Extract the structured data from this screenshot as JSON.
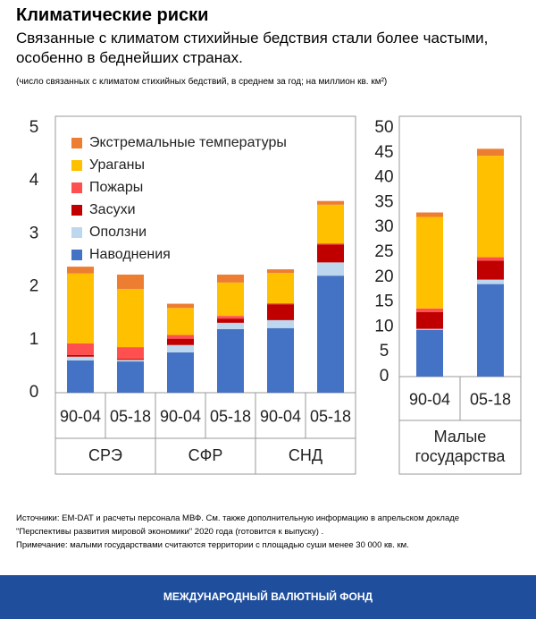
{
  "header": {
    "title": "Климатические риски",
    "subtitle": "Связанные с климатом стихийные бедствия стали более частыми, особенно в беднейших странах.",
    "unit_note": "(число связанных с климатом стихийных бедствий,  в среднем за год; на миллион кв. км²)"
  },
  "chart_data": [
    {
      "type": "bar",
      "stacked": true,
      "legend": "upper left",
      "categories": [
        "90-04",
        "05-18",
        "90-04",
        "05-18",
        "90-04",
        "05-18"
      ],
      "groups": [
        "СРЭ",
        "СФР",
        "СНД"
      ],
      "ylim": [
        0,
        5
      ],
      "yticks": [
        0,
        1,
        2,
        3,
        4,
        5
      ],
      "series": [
        {
          "name": "Наводнения",
          "color": "#4472c4",
          "values": [
            0.61,
            0.59,
            0.76,
            1.2,
            1.22,
            2.21
          ]
        },
        {
          "name": "Оползни",
          "color": "#bdd7ee",
          "values": [
            0.07,
            0.03,
            0.14,
            0.12,
            0.15,
            0.25
          ]
        },
        {
          "name": "Засухи",
          "color": "#c00000",
          "values": [
            0.03,
            0.02,
            0.12,
            0.08,
            0.3,
            0.34
          ]
        },
        {
          "name": "Пожары",
          "color": "#ff5050",
          "values": [
            0.22,
            0.22,
            0.07,
            0.05,
            0.02,
            0.02
          ]
        },
        {
          "name": "Ураганы",
          "color": "#ffc000",
          "values": [
            1.32,
            1.1,
            0.51,
            0.63,
            0.57,
            0.73
          ]
        },
        {
          "name": "Экстремальные температуры",
          "color": "#ed7d31",
          "values": [
            0.13,
            0.27,
            0.08,
            0.15,
            0.07,
            0.07
          ]
        }
      ]
    },
    {
      "type": "bar",
      "stacked": true,
      "categories": [
        "90-04",
        "05-18"
      ],
      "groups": [
        "Малые государства"
      ],
      "ylim": [
        0,
        50
      ],
      "yticks": [
        0,
        5,
        10,
        15,
        20,
        25,
        30,
        35,
        40,
        45,
        50
      ],
      "series": [
        {
          "name": "Наводнения",
          "color": "#4472c4",
          "values": [
            9.4,
            18.6
          ]
        },
        {
          "name": "Оползни",
          "color": "#bdd7ee",
          "values": [
            0.2,
            0.9
          ]
        },
        {
          "name": "Засухи",
          "color": "#c00000",
          "values": [
            3.4,
            3.8
          ]
        },
        {
          "name": "Пожары",
          "color": "#ff5050",
          "values": [
            0.7,
            0.7
          ]
        },
        {
          "name": "Ураганы",
          "color": "#ffc000",
          "values": [
            18.4,
            20.4
          ]
        },
        {
          "name": "Экстремальные температуры",
          "color": "#ed7d31",
          "values": [
            0.9,
            1.4
          ]
        }
      ]
    }
  ],
  "footer": {
    "source": [
      "Источники: EM-DAT и расчеты персонала МВФ.  См. также дополнительную информацию в апрельском докладе",
      "\"Перспективы развития мировой экономики\"  2020 года (готовится к выпуску) ."
    ],
    "note": "Примечание:  малыми государствами считаются территории с площадью суши менее 30 000 кв. км.",
    "brand": "МЕЖДУНАРОДНЫЙ ВАЛЮТНЫЙ ФОНД"
  }
}
